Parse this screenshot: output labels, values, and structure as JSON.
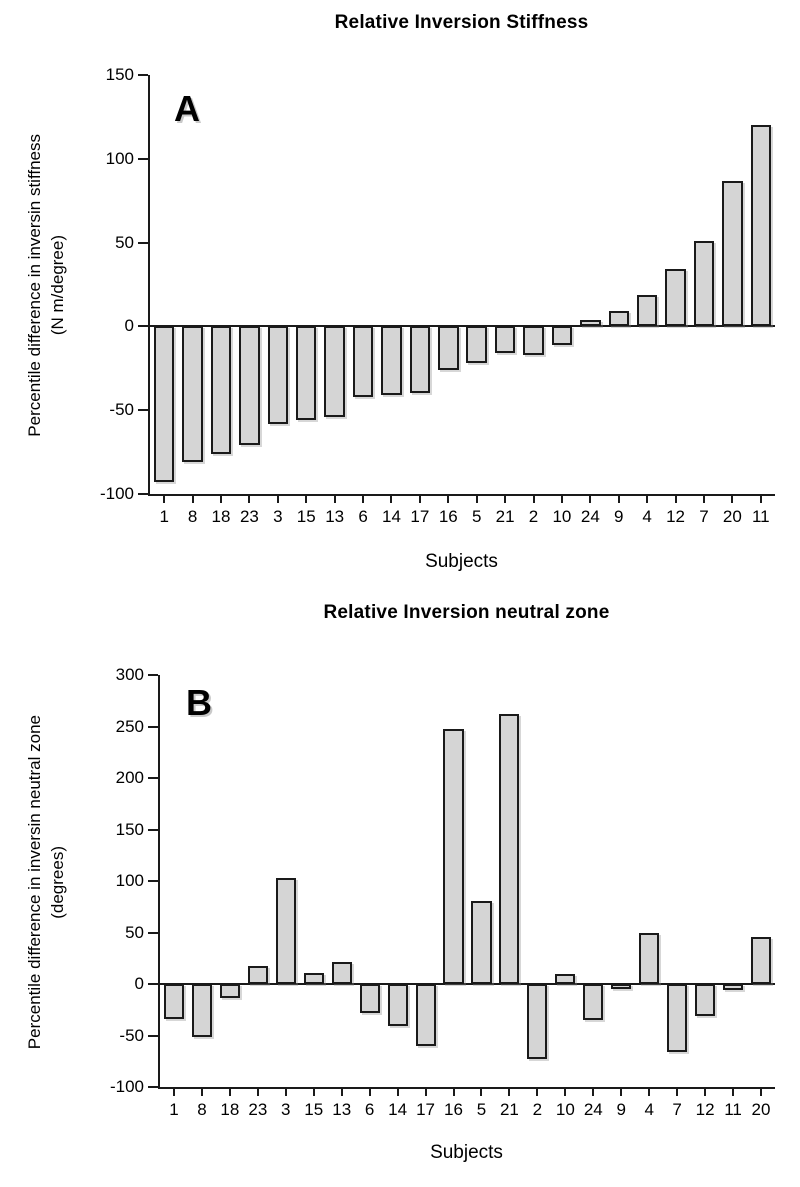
{
  "figure": {
    "background": "#ffffff",
    "text_color": "#000000"
  },
  "chart_data": [
    {
      "type": "bar",
      "panel_label": "A",
      "title": "Relative Inversion Stiffness",
      "xlabel": "Subjects",
      "ylabel": "Percentile difference in inversin stiffness (N m/degree)",
      "ylabel_line1": "Percentile difference in inversin stiffness",
      "ylabel_line2": "(N m/degree)",
      "ylim": [
        -100,
        150
      ],
      "yticks": [
        150,
        100,
        50,
        0,
        -50,
        -100
      ],
      "categories": [
        "1",
        "8",
        "18",
        "23",
        "3",
        "15",
        "13",
        "6",
        "14",
        "17",
        "16",
        "5",
        "21",
        "2",
        "10",
        "24",
        "9",
        "4",
        "12",
        "7",
        "20",
        "11"
      ],
      "values": [
        -93,
        -81,
        -76,
        -71,
        -58,
        -56,
        -54,
        -42,
        -41,
        -40,
        -26,
        -22,
        -16,
        -17,
        -11,
        4,
        9,
        19,
        34,
        51,
        87,
        120
      ],
      "bar_fill": "#d5d5d5",
      "bar_border": "#1a1a1a",
      "axis_color": "#1a1a1a",
      "grid": false,
      "legend": false
    },
    {
      "type": "bar",
      "panel_label": "B",
      "title": "Relative Inversion neutral zone",
      "xlabel": "Subjects",
      "ylabel": "Percentile difference in inversin neutral zone (degrees)",
      "ylabel_line1": "Percentile difference in inversin neutral zone",
      "ylabel_line2": "(degrees)",
      "ylim": [
        -100,
        300
      ],
      "yticks": [
        300,
        250,
        200,
        150,
        100,
        50,
        0,
        -50,
        -100
      ],
      "categories": [
        "1",
        "8",
        "18",
        "23",
        "3",
        "15",
        "13",
        "6",
        "14",
        "17",
        "16",
        "5",
        "21",
        "2",
        "10",
        "24",
        "9",
        "4",
        "7",
        "12",
        "11",
        "20"
      ],
      "values": [
        -34,
        -51,
        -14,
        17,
        103,
        11,
        21,
        -28,
        -41,
        -60,
        248,
        81,
        262,
        -73,
        10,
        -35,
        -5,
        50,
        -66,
        -31,
        -6,
        46
      ],
      "bar_fill": "#d5d5d5",
      "bar_border": "#1a1a1a",
      "axis_color": "#1a1a1a",
      "grid": false,
      "legend": false
    }
  ]
}
